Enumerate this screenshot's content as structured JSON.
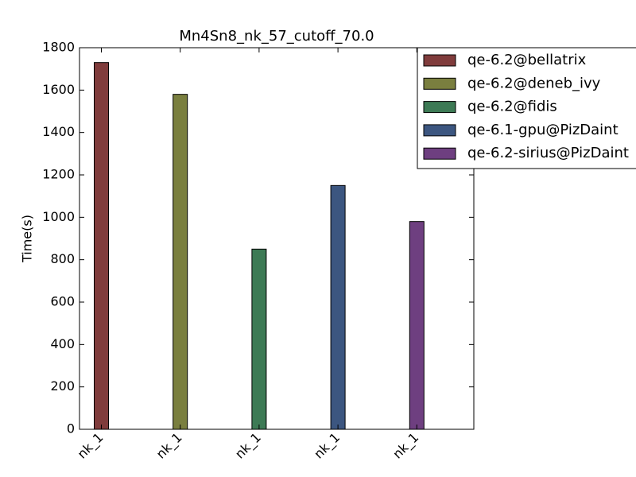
{
  "chart_data": {
    "type": "bar",
    "title": "Mn4Sn8_nk_57_cutoff_70.0",
    "y_label": "Time(s)",
    "categories": [
      "nk_1",
      "nk_1",
      "nk_1",
      "nk_1",
      "nk_1"
    ],
    "series": [
      {
        "name": "qe-6.2@bellatrix",
        "color": "#803c3c",
        "values": [
          1730,
          null,
          null,
          null,
          null
        ]
      },
      {
        "name": "qe-6.2@deneb_ivy",
        "color": "#7a7f3f",
        "values": [
          null,
          1580,
          null,
          null,
          null
        ]
      },
      {
        "name": "qe-6.2@fidis",
        "color": "#3d7a55",
        "values": [
          null,
          null,
          850,
          null,
          null
        ]
      },
      {
        "name": "qe-6.1-gpu@PizDaint",
        "color": "#3c5680",
        "values": [
          null,
          null,
          null,
          1150,
          null
        ]
      },
      {
        "name": "qe-6.2-sirius@PizDaint",
        "color": "#6e3f80",
        "values": [
          null,
          null,
          null,
          null,
          980
        ]
      }
    ],
    "ylim": [
      0,
      1800
    ],
    "yticks": [
      0,
      200,
      400,
      600,
      800,
      1000,
      1200,
      1400,
      1600,
      1800
    ],
    "legend": "upper right"
  }
}
